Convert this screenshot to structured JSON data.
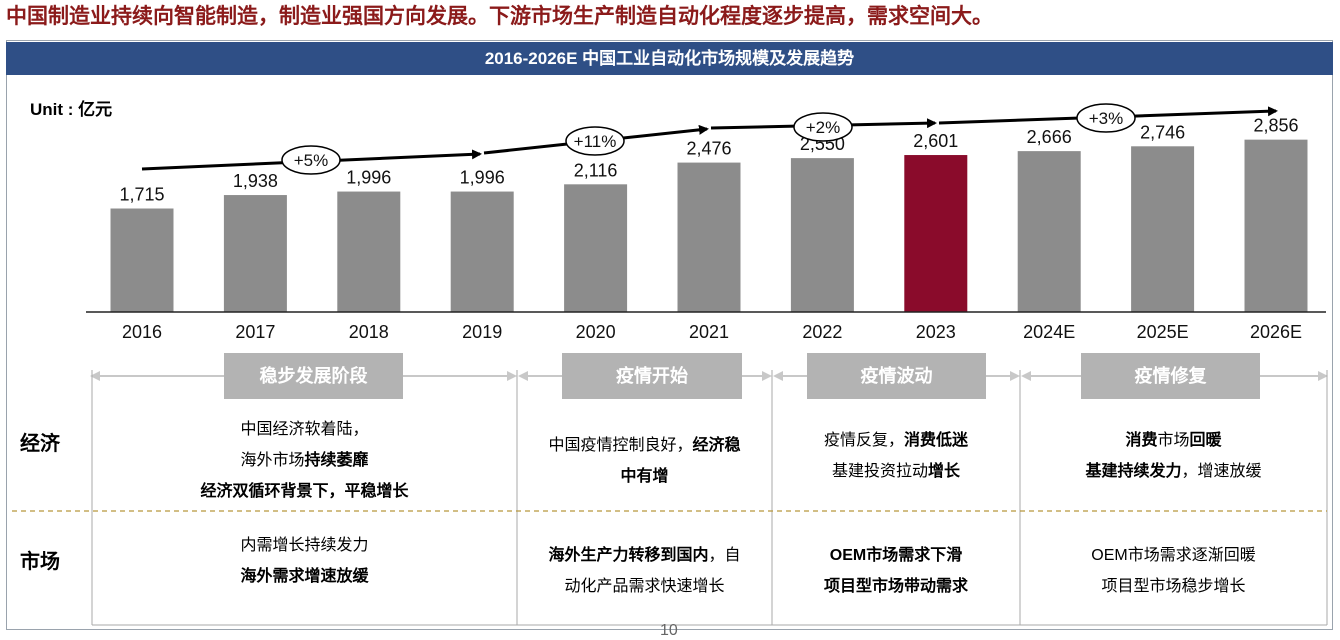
{
  "headline": "中国制造业持续向智能制造，制造业强国方向发展。下游市场生产制造自动化程度逐步提高，需求空间大。",
  "chart_title": "2016-2026E 中国工业自动化市场规模及发展趋势",
  "unit_label": "Unit : 亿元",
  "colors": {
    "bar": "#8c8c8c",
    "highlight": "#8a0b2b",
    "banner": "#2f4f86",
    "phase": "#b3b3b3",
    "headline": "#8b1a1a"
  },
  "chart_data": {
    "type": "bar",
    "title": "2016-2026E 中国工业自动化市场规模及发展趋势",
    "unit": "亿元",
    "categories": [
      "2016",
      "2017",
      "2018",
      "2019",
      "2020",
      "2021",
      "2022",
      "2023",
      "2024E",
      "2025E",
      "2026E"
    ],
    "values": [
      1715,
      1938,
      1996,
      1996,
      2116,
      2476,
      2550,
      2601,
      2666,
      2746,
      2856
    ],
    "value_labels": [
      "1,715",
      "1,938",
      "1,996",
      "1,996",
      "2,116",
      "2,476",
      "2,550",
      "2,601",
      "2,666",
      "2,746",
      "2,856"
    ],
    "highlight_index": 7,
    "growth_trend": [
      {
        "label": "+5%",
        "from": "2016",
        "to": "2019"
      },
      {
        "label": "+11%",
        "from": "2019",
        "to": "2021"
      },
      {
        "label": "+2%",
        "from": "2021",
        "to": "2023"
      },
      {
        "label": "+3%",
        "from": "2023",
        "to": "2026E"
      }
    ]
  },
  "phases": [
    "稳步发展阶段",
    "疫情开始",
    "疫情波动",
    "疫情修复"
  ],
  "row_labels": {
    "economy": "经济",
    "market": "市场"
  },
  "economy": [
    [
      [
        {
          "t": "中国经济软着陆，",
          "b": false
        }
      ],
      [
        {
          "t": "海外市场",
          "b": false
        },
        {
          "t": "持续萎靡",
          "b": true
        }
      ],
      [
        {
          "t": "经济双循环背景下，平稳增长",
          "b": true
        }
      ]
    ],
    [
      [
        {
          "t": "中国疫情控制良好，",
          "b": false
        },
        {
          "t": "经济稳",
          "b": true
        }
      ],
      [
        {
          "t": "中有增",
          "b": true
        }
      ]
    ],
    [
      [
        {
          "t": "疫情反复，",
          "b": false
        },
        {
          "t": "消费低迷",
          "b": true
        }
      ],
      [
        {
          "t": "基建投资拉动",
          "b": false
        },
        {
          "t": "增长",
          "b": true
        }
      ]
    ],
    [
      [
        {
          "t": "消费",
          "b": true
        },
        {
          "t": "市场",
          "b": false
        },
        {
          "t": "回暖",
          "b": true
        }
      ],
      [
        {
          "t": "基建持续发力",
          "b": true
        },
        {
          "t": "，增速放缓",
          "b": false
        }
      ]
    ]
  ],
  "market": [
    [
      [
        {
          "t": "内需增长持续发力",
          "b": false
        }
      ],
      [
        {
          "t": "海外需求增速放缓",
          "b": true
        }
      ]
    ],
    [
      [
        {
          "t": "海外生产力转移到国内",
          "b": true
        },
        {
          "t": "，自",
          "b": false
        }
      ],
      [
        {
          "t": "动化产品需求快速增长",
          "b": false
        }
      ]
    ],
    [
      [
        {
          "t": "OEM市场需求下滑",
          "b": true
        }
      ],
      [
        {
          "t": "项目型市场带动需求",
          "b": true
        }
      ]
    ],
    [
      [
        {
          "t": "OEM市场需求逐渐回暖",
          "b": false
        }
      ],
      [
        {
          "t": "项目型市场稳步增长",
          "b": false
        }
      ]
    ]
  ],
  "page_number": "10"
}
